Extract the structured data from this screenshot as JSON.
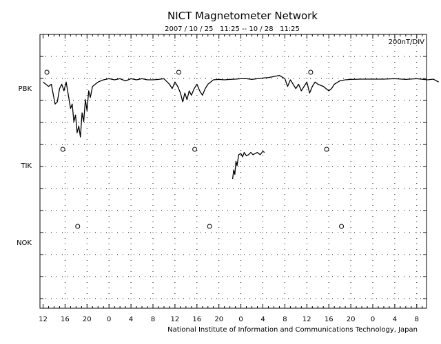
{
  "chart_data": {
    "type": "line",
    "title": "NICT Magnetometer Network",
    "subtitle": "2007 / 10 / 25   11:25 -- 10 / 28   11:25",
    "scale_label": "200nT/DIV",
    "footer": "National Institute of Information and Communications Technology, Japan",
    "x_ticks": [
      "12",
      "16",
      "20",
      "0",
      "4",
      "8",
      "12",
      "16",
      "20",
      "0",
      "4",
      "8",
      "12",
      "16",
      "20",
      "0",
      "4",
      "8"
    ],
    "x_range_hours": [
      0,
      72
    ],
    "grid": true,
    "stations": [
      {
        "name": "PBK",
        "midnight_markers_hours": [
          0.7,
          24.7,
          48.7
        ],
        "series": [
          [
            0,
            -0.1
          ],
          [
            1,
            -0.3
          ],
          [
            1.5,
            -0.2
          ],
          [
            1.8,
            -0.6
          ],
          [
            2.2,
            -1.1
          ],
          [
            2.6,
            -1.0
          ],
          [
            3,
            -0.4
          ],
          [
            3.4,
            -0.2
          ],
          [
            3.8,
            -0.5
          ],
          [
            4.2,
            -0.1
          ],
          [
            4.6,
            -0.7
          ],
          [
            5,
            -1.3
          ],
          [
            5.3,
            -1.1
          ],
          [
            5.6,
            -1.9
          ],
          [
            5.9,
            -1.6
          ],
          [
            6.2,
            -2.4
          ],
          [
            6.5,
            -2.1
          ],
          [
            6.8,
            -2.6
          ],
          [
            7.1,
            -1.5
          ],
          [
            7.4,
            -1.9
          ],
          [
            7.7,
            -0.9
          ],
          [
            8,
            -1.4
          ],
          [
            8.3,
            -0.5
          ],
          [
            8.6,
            -0.8
          ],
          [
            9,
            -0.3
          ],
          [
            9.5,
            -0.2
          ],
          [
            10,
            -0.1
          ],
          [
            11,
            0.0
          ],
          [
            12,
            0.05
          ],
          [
            13,
            0.0
          ],
          [
            14,
            0.05
          ],
          [
            15,
            -0.05
          ],
          [
            16,
            0.05
          ],
          [
            17,
            0.0
          ],
          [
            18,
            0.05
          ],
          [
            19,
            0.0
          ],
          [
            20,
            0.0
          ],
          [
            21,
            0.02
          ],
          [
            22,
            0.05
          ],
          [
            23,
            -0.2
          ],
          [
            23.5,
            -0.4
          ],
          [
            24,
            -0.1
          ],
          [
            24.5,
            -0.3
          ],
          [
            25,
            -0.6
          ],
          [
            25.4,
            -1.0
          ],
          [
            25.8,
            -0.6
          ],
          [
            26.2,
            -0.9
          ],
          [
            26.6,
            -0.5
          ],
          [
            27,
            -0.7
          ],
          [
            27.5,
            -0.4
          ],
          [
            28,
            -0.2
          ],
          [
            28.5,
            -0.5
          ],
          [
            29,
            -0.7
          ],
          [
            29.5,
            -0.4
          ],
          [
            30,
            -0.2
          ],
          [
            30.5,
            -0.1
          ],
          [
            31,
            0.0
          ],
          [
            32,
            0.02
          ],
          [
            33,
            0.0
          ],
          [
            34,
            0.02
          ],
          [
            35,
            0.03
          ],
          [
            36,
            0.05
          ],
          [
            37,
            0.05
          ],
          [
            38,
            0.02
          ],
          [
            39,
            0.05
          ],
          [
            40,
            0.08
          ],
          [
            41,
            0.1
          ],
          [
            42,
            0.15
          ],
          [
            43,
            0.2
          ],
          [
            44,
            0.05
          ],
          [
            44.5,
            -0.3
          ],
          [
            45,
            0.0
          ],
          [
            45.5,
            -0.2
          ],
          [
            46,
            -0.4
          ],
          [
            46.5,
            -0.2
          ],
          [
            47,
            -0.5
          ],
          [
            47.5,
            -0.3
          ],
          [
            48,
            -0.1
          ],
          [
            48.5,
            -0.6
          ],
          [
            49,
            -0.3
          ],
          [
            49.5,
            -0.1
          ],
          [
            50,
            -0.2
          ],
          [
            51,
            -0.3
          ],
          [
            52,
            -0.5
          ],
          [
            52.5,
            -0.4
          ],
          [
            53,
            -0.2
          ],
          [
            54,
            -0.05
          ],
          [
            55,
            0.0
          ],
          [
            56,
            0.02
          ],
          [
            58,
            0.03
          ],
          [
            60,
            0.03
          ],
          [
            62,
            0.03
          ],
          [
            64,
            0.05
          ],
          [
            66,
            0.02
          ],
          [
            68,
            0.05
          ],
          [
            70,
            0.0
          ],
          [
            71,
            0.03
          ],
          [
            72,
            -0.1
          ]
        ]
      },
      {
        "name": "TIK",
        "midnight_markers_hours": [
          3.6,
          27.6,
          51.6
        ],
        "series": [
          [
            34.5,
            -1.0
          ],
          [
            34.7,
            -0.6
          ],
          [
            34.9,
            -0.8
          ],
          [
            35.1,
            -0.2
          ],
          [
            35.3,
            -0.4
          ],
          [
            35.6,
            0.1
          ],
          [
            36,
            0.15
          ],
          [
            36.3,
            0.0
          ],
          [
            36.6,
            0.2
          ],
          [
            37,
            0.05
          ],
          [
            37.4,
            0.1
          ],
          [
            37.8,
            0.2
          ],
          [
            38.2,
            0.1
          ],
          [
            38.6,
            0.15
          ],
          [
            39,
            0.2
          ],
          [
            39.5,
            0.1
          ],
          [
            40,
            0.25
          ],
          [
            40.3,
            0.2
          ]
        ]
      },
      {
        "name": "NOK",
        "midnight_markers_hours": [
          6.3,
          30.3,
          54.3
        ],
        "series": []
      }
    ]
  }
}
